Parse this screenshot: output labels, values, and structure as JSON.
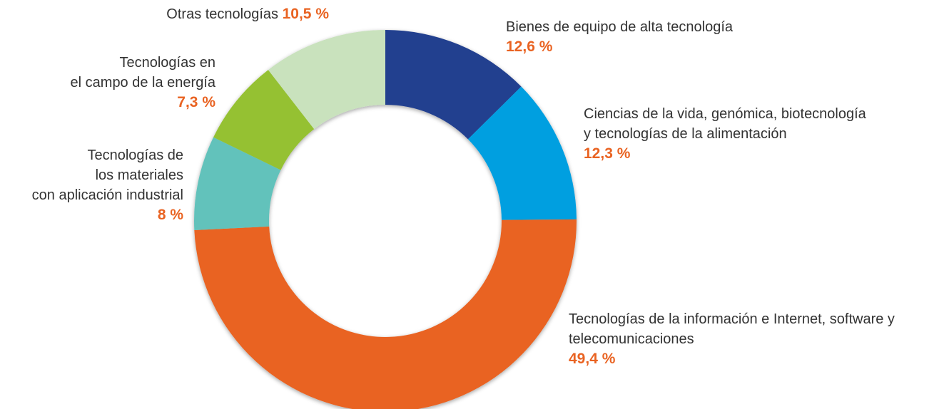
{
  "chart_data": {
    "type": "pie",
    "categories": [
      "Bienes de equipo de alta tecnología",
      "Ciencias de la vida, genómica, biotecnología\ny tecnologías de la alimentación",
      "Tecnologías de la información e Internet, software y\ntelecomunicaciones",
      "Tecnologías de\nlos materiales\ncon aplicación industrial",
      "Tecnologías en\nel campo de la energía",
      "Otras tecnologías"
    ],
    "values": [
      12.6,
      12.3,
      49.4,
      8,
      7.3,
      10.5
    ],
    "value_labels": [
      "12,6 %",
      "12,3 %",
      "49,4 %",
      "8 %",
      "7,3 %",
      "10,5 %"
    ],
    "colors": [
      "#233f8f",
      "#009fe0",
      "#e96322",
      "#62c2bb",
      "#95c130",
      "#c9e2bd"
    ],
    "donut": true
  }
}
